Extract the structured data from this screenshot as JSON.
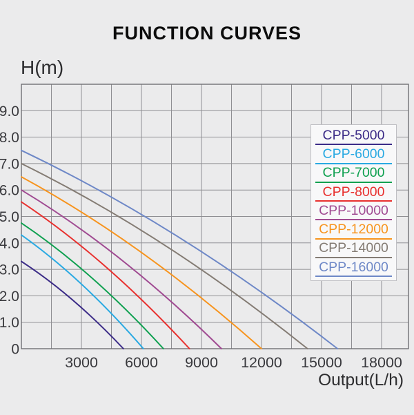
{
  "chart_data": {
    "type": "line",
    "title": "FUNCTION CURVES",
    "xlabel": "Output(L/h)",
    "ylabel": "H(m)",
    "xlim": [
      0,
      19350
    ],
    "ylim": [
      0,
      10
    ],
    "grid": true,
    "x_minor_grid_step": 1500,
    "y_grid_step": 1,
    "legend_position": "upper-right",
    "x_ticks": [
      3000,
      6000,
      9000,
      12000,
      15000,
      18000
    ],
    "y_ticks": [
      {
        "value": 9,
        "label": "9.0"
      },
      {
        "value": 8,
        "label": "8.0"
      },
      {
        "value": 7,
        "label": "7.0"
      },
      {
        "value": 6,
        "label": "6.0"
      },
      {
        "value": 5,
        "label": "5.0"
      },
      {
        "value": 4,
        "label": "4.0"
      },
      {
        "value": 3,
        "label": "3.0"
      },
      {
        "value": 2,
        "label": "2.0"
      },
      {
        "value": 1,
        "label": "1.0"
      },
      {
        "value": 0,
        "label": "0"
      }
    ],
    "series": [
      {
        "name": "CPP-5000",
        "color": "#3b2b87",
        "max_head_m": 3.3,
        "zero_head_flow_lh": 5100
      },
      {
        "name": "CPP-6000",
        "color": "#29a9e2",
        "max_head_m": 4.3,
        "zero_head_flow_lh": 6100
      },
      {
        "name": "CPP-7000",
        "color": "#0fa050",
        "max_head_m": 4.75,
        "zero_head_flow_lh": 7100
      },
      {
        "name": "CPP-8000",
        "color": "#e8302e",
        "max_head_m": 5.55,
        "zero_head_flow_lh": 8400
      },
      {
        "name": "CPP-10000",
        "color": "#a04b92",
        "max_head_m": 6.0,
        "zero_head_flow_lh": 10000
      },
      {
        "name": "CPP-12000",
        "color": "#f7941e",
        "max_head_m": 6.5,
        "zero_head_flow_lh": 12000
      },
      {
        "name": "CPP-14000",
        "color": "#847c74",
        "max_head_m": 7.0,
        "zero_head_flow_lh": 14300
      },
      {
        "name": "CPP-16000",
        "color": "#6e88c7",
        "max_head_m": 7.5,
        "zero_head_flow_lh": 15800
      }
    ]
  }
}
